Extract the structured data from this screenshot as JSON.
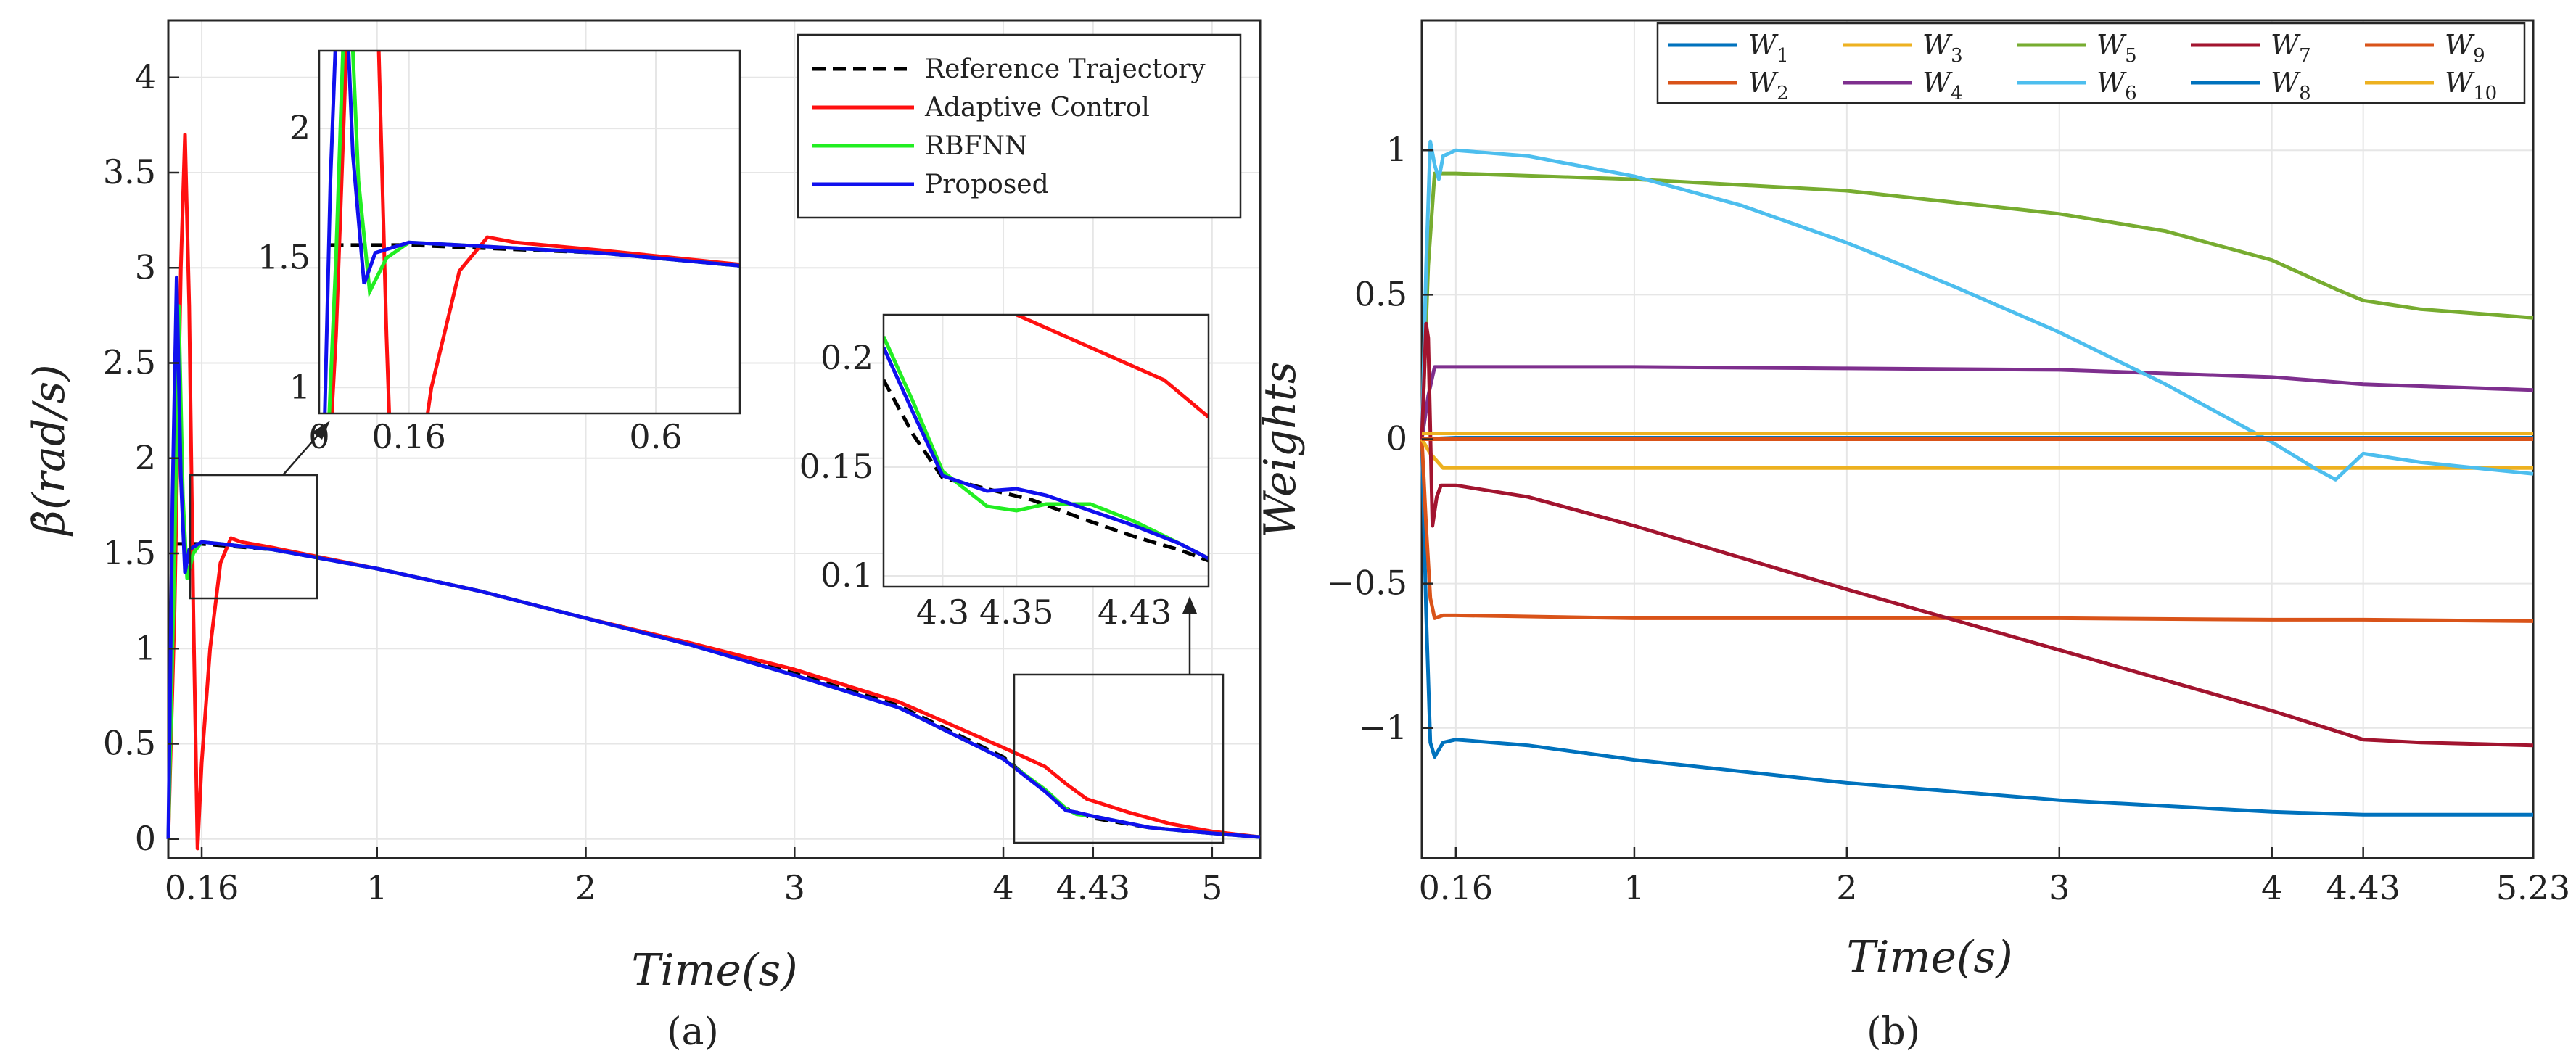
{
  "colors": {
    "reference": "#000000",
    "adaptive": "#ff1010",
    "rbfnn": "#22ee22",
    "proposed": "#1010ee",
    "W1": "#0072bd",
    "W2": "#d95319",
    "W3": "#edb120",
    "W4": "#7e2f8e",
    "W5": "#77ac30",
    "W6": "#4dbeee",
    "W7": "#a2142f",
    "W8": "#0072bd",
    "W9": "#d95319",
    "W10": "#edb120"
  },
  "panel_a": {
    "caption": "(a)",
    "xlabel": "Time(s)",
    "ylabel": "β̇(rad/s)",
    "xticks": [
      "0.16",
      "1",
      "2",
      "3",
      "4",
      "4.43",
      "5"
    ],
    "yticks": [
      "0",
      "0.5",
      "1",
      "1.5",
      "2",
      "2.5",
      "3",
      "3.5",
      "4"
    ],
    "legend": [
      "Reference Trajectory",
      "Adaptive Control",
      "RBFNN",
      "Proposed"
    ],
    "inset1": {
      "xticks": [
        "0",
        "0.16",
        "0.6"
      ],
      "yticks": [
        "1",
        "1.5",
        "2"
      ]
    },
    "inset2": {
      "xticks": [
        "4.3",
        "4.35",
        "4.43"
      ],
      "yticks": [
        "0.1",
        "0.15",
        "0.2"
      ]
    }
  },
  "panel_b": {
    "caption": "(b)",
    "xlabel": "Time(s)",
    "ylabel": "Weights",
    "xticks": [
      "0.16",
      "1",
      "2",
      "3",
      "4",
      "4.43",
      "5.23"
    ],
    "yticks": [
      "1",
      "0.5",
      "0",
      "−0.5",
      "−1"
    ],
    "legend": [
      "W1",
      "W2",
      "W3",
      "W4",
      "W5",
      "W6",
      "W7",
      "W8",
      "W9",
      "W10"
    ]
  },
  "chart_data": [
    {
      "type": "line",
      "title": "",
      "xlabel": "Time(s)",
      "ylabel": "β̇(rad/s)",
      "xlim": [
        0,
        5.23
      ],
      "ylim": [
        -0.1,
        4.3
      ],
      "grid": true,
      "legend_position": "top-right",
      "series": [
        {
          "name": "Reference Trajectory",
          "x": [
            0.02,
            0.16,
            0.5,
            1,
            1.5,
            2,
            2.5,
            3,
            3.5,
            4,
            4.3,
            4.43,
            4.7,
            5,
            5.23
          ],
          "y": [
            1.55,
            1.55,
            1.52,
            1.42,
            1.3,
            1.16,
            1.02,
            0.87,
            0.7,
            0.43,
            0.16,
            0.11,
            0.06,
            0.03,
            0.01
          ]
        },
        {
          "name": "Adaptive Control",
          "x": [
            0.0,
            0.03,
            0.06,
            0.08,
            0.1,
            0.12,
            0.14,
            0.16,
            0.2,
            0.25,
            0.3,
            0.35,
            0.5,
            1,
            1.5,
            2,
            2.5,
            3,
            3.5,
            4,
            4.2,
            4.3,
            4.4,
            4.6,
            4.8,
            5,
            5.23
          ],
          "y": [
            0.0,
            1.2,
            3.0,
            3.7,
            2.8,
            1.2,
            -0.05,
            0.4,
            1.0,
            1.45,
            1.58,
            1.56,
            1.53,
            1.42,
            1.3,
            1.16,
            1.03,
            0.89,
            0.72,
            0.48,
            0.38,
            0.29,
            0.21,
            0.14,
            0.08,
            0.04,
            0.01
          ]
        },
        {
          "name": "RBFNN",
          "x": [
            0.0,
            0.03,
            0.05,
            0.07,
            0.09,
            0.12,
            0.16,
            0.25,
            0.5,
            1,
            1.5,
            2,
            2.5,
            3,
            3.5,
            4,
            4.2,
            4.3,
            4.35,
            4.43,
            4.7,
            5,
            5.23
          ],
          "y": [
            0.0,
            1.5,
            2.8,
            1.8,
            1.37,
            1.5,
            1.56,
            1.55,
            1.52,
            1.42,
            1.3,
            1.16,
            1.02,
            0.86,
            0.69,
            0.42,
            0.26,
            0.16,
            0.13,
            0.12,
            0.06,
            0.03,
            0.01
          ]
        },
        {
          "name": "Proposed",
          "x": [
            0.0,
            0.02,
            0.04,
            0.06,
            0.08,
            0.1,
            0.16,
            0.25,
            0.5,
            1,
            1.5,
            2,
            2.5,
            3,
            3.5,
            4,
            4.2,
            4.3,
            4.35,
            4.43,
            4.7,
            5,
            5.23
          ],
          "y": [
            0.0,
            1.8,
            2.95,
            1.9,
            1.4,
            1.52,
            1.56,
            1.55,
            1.52,
            1.42,
            1.3,
            1.16,
            1.02,
            0.86,
            0.69,
            0.42,
            0.25,
            0.15,
            0.14,
            0.12,
            0.06,
            0.03,
            0.01
          ]
        }
      ]
    },
    {
      "type": "line",
      "title": "",
      "xlabel": "Time(s)",
      "ylabel": "Weights",
      "xlim": [
        0,
        5.23
      ],
      "ylim": [
        -1.45,
        1.45
      ],
      "grid": true,
      "legend_position": "top",
      "series": [
        {
          "name": "W1",
          "x": [
            0,
            0.02,
            0.04,
            0.06,
            0.1,
            0.16,
            0.5,
            1,
            2,
            3,
            4,
            4.43,
            5.23
          ],
          "y": [
            0,
            -0.6,
            -1.05,
            -1.1,
            -1.05,
            -1.04,
            -1.06,
            -1.11,
            -1.19,
            -1.25,
            -1.29,
            -1.3,
            -1.3
          ]
        },
        {
          "name": "W2",
          "x": [
            0,
            0.02,
            0.04,
            0.06,
            0.1,
            0.16,
            1,
            2,
            3,
            4,
            4.43,
            5.23
          ],
          "y": [
            0,
            -0.3,
            -0.55,
            -0.62,
            -0.61,
            -0.61,
            -0.62,
            -0.62,
            -0.62,
            -0.625,
            -0.625,
            -0.63
          ]
        },
        {
          "name": "W3",
          "x": [
            0,
            0.04,
            0.1,
            0.16,
            1,
            2,
            3,
            4,
            4.43,
            5.23
          ],
          "y": [
            0,
            -0.05,
            -0.1,
            -0.1,
            -0.1,
            -0.1,
            -0.1,
            -0.1,
            -0.1,
            -0.1
          ]
        },
        {
          "name": "W4",
          "x": [
            0,
            0.03,
            0.06,
            0.16,
            1,
            2,
            3,
            4,
            4.43,
            5.23
          ],
          "y": [
            0,
            0.15,
            0.25,
            0.25,
            0.25,
            0.245,
            0.24,
            0.215,
            0.19,
            0.17
          ]
        },
        {
          "name": "W5",
          "x": [
            0,
            0.03,
            0.06,
            0.1,
            0.16,
            1,
            2,
            3,
            3.5,
            4,
            4.3,
            4.43,
            4.7,
            5.23
          ],
          "y": [
            0,
            0.6,
            0.92,
            0.92,
            0.92,
            0.9,
            0.86,
            0.78,
            0.72,
            0.62,
            0.52,
            0.48,
            0.45,
            0.42
          ]
        },
        {
          "name": "W6",
          "x": [
            0,
            0.02,
            0.04,
            0.06,
            0.08,
            0.1,
            0.16,
            0.5,
            1,
            1.5,
            2,
            2.5,
            3,
            3.5,
            4,
            4.2,
            4.3,
            4.43,
            4.7,
            5.23
          ],
          "y": [
            0,
            0.6,
            1.03,
            0.95,
            0.9,
            0.98,
            1.0,
            0.98,
            0.91,
            0.81,
            0.68,
            0.53,
            0.37,
            0.19,
            -0.01,
            -0.1,
            -0.14,
            -0.05,
            -0.08,
            -0.12
          ]
        },
        {
          "name": "W7",
          "x": [
            0,
            0.02,
            0.03,
            0.05,
            0.07,
            0.09,
            0.16,
            0.5,
            1,
            2,
            3,
            4,
            4.43,
            4.7,
            5.23
          ],
          "y": [
            0,
            0.4,
            0.35,
            -0.3,
            -0.2,
            -0.16,
            -0.16,
            -0.2,
            -0.3,
            -0.52,
            -0.73,
            -0.94,
            -1.04,
            -1.05,
            -1.06
          ]
        },
        {
          "name": "W8",
          "x": [
            0,
            0.16,
            1,
            2,
            3,
            4,
            4.43,
            5.23
          ],
          "y": [
            0,
            0.005,
            0.005,
            0.005,
            0.005,
            0.005,
            0.005,
            0.005
          ]
        },
        {
          "name": "W9",
          "x": [
            0,
            0.16,
            1,
            2,
            3,
            4,
            4.43,
            5.23
          ],
          "y": [
            0,
            0.0,
            0.0,
            0.0,
            0.0,
            0.0,
            0.0,
            0.0
          ]
        },
        {
          "name": "W10",
          "x": [
            0,
            0.16,
            1,
            2,
            3,
            4,
            4.43,
            5.23
          ],
          "y": [
            0.02,
            0.02,
            0.02,
            0.02,
            0.02,
            0.02,
            0.02,
            0.02
          ]
        }
      ]
    }
  ]
}
